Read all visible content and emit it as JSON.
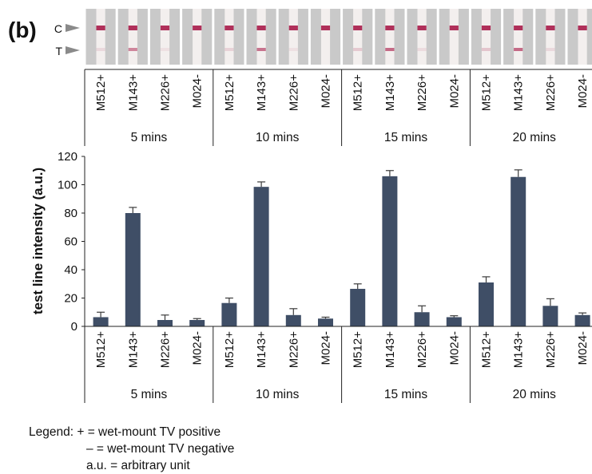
{
  "figure": {
    "panel_label": "(b)",
    "marker_c": "C",
    "marker_t": "T"
  },
  "strips": [
    {
      "group": "5 mins",
      "sample": "M512+",
      "control_line": 1.0,
      "test_line": 0.12
    },
    {
      "group": "5 mins",
      "sample": "M143+",
      "control_line": 1.0,
      "test_line": 0.55
    },
    {
      "group": "5 mins",
      "sample": "M226+",
      "control_line": 1.0,
      "test_line": 0.08
    },
    {
      "group": "5 mins",
      "sample": "M024-",
      "control_line": 1.0,
      "test_line": 0.0
    },
    {
      "group": "10 mins",
      "sample": "M512+",
      "control_line": 1.0,
      "test_line": 0.15
    },
    {
      "group": "10 mins",
      "sample": "M143+",
      "control_line": 1.0,
      "test_line": 0.65
    },
    {
      "group": "10 mins",
      "sample": "M226+",
      "control_line": 1.0,
      "test_line": 0.08
    },
    {
      "group": "10 mins",
      "sample": "M024-",
      "control_line": 1.0,
      "test_line": 0.0
    },
    {
      "group": "15 mins",
      "sample": "M512+",
      "control_line": 1.0,
      "test_line": 0.2
    },
    {
      "group": "15 mins",
      "sample": "M143+",
      "control_line": 1.0,
      "test_line": 0.7
    },
    {
      "group": "15 mins",
      "sample": "M226+",
      "control_line": 1.0,
      "test_line": 0.1
    },
    {
      "group": "15 mins",
      "sample": "M024-",
      "control_line": 1.0,
      "test_line": 0.0
    },
    {
      "group": "20 mins",
      "sample": "M512+",
      "control_line": 1.0,
      "test_line": 0.22
    },
    {
      "group": "20 mins",
      "sample": "M143+",
      "control_line": 1.0,
      "test_line": 0.7
    },
    {
      "group": "20 mins",
      "sample": "M226+",
      "control_line": 1.0,
      "test_line": 0.12
    },
    {
      "group": "20 mins",
      "sample": "M024-",
      "control_line": 1.0,
      "test_line": 0.0
    }
  ],
  "chart_data": {
    "type": "bar",
    "ylabel": "test line intensity (a.u.)",
    "ylim": [
      0,
      120
    ],
    "yticks": [
      0,
      20,
      40,
      60,
      80,
      100,
      120
    ],
    "groups": [
      "5 mins",
      "10 mins",
      "15 mins",
      "20 mins"
    ],
    "samples": [
      "M512+",
      "M143+",
      "M226+",
      "M024-"
    ],
    "bar_color": "#3f4e66",
    "values": [
      {
        "group": "5 mins",
        "values": [
          6.5,
          80,
          4.5,
          4.5
        ],
        "errors": [
          3.5,
          4,
          3.5,
          1
        ]
      },
      {
        "group": "10 mins",
        "values": [
          16.5,
          98.5,
          8,
          5.5
        ],
        "errors": [
          3.5,
          3.5,
          4.5,
          1
        ]
      },
      {
        "group": "15 mins",
        "values": [
          26.5,
          106,
          10,
          6.5
        ],
        "errors": [
          3.5,
          4,
          4.5,
          1
        ]
      },
      {
        "group": "20 mins",
        "values": [
          31,
          105.5,
          14.5,
          8
        ],
        "errors": [
          4,
          5,
          5,
          1.5
        ]
      }
    ]
  },
  "legend": {
    "line1": "Legend: + = wet-mount TV positive",
    "line2": "– = wet-mount TV negative",
    "line3": "a.u. = arbitrary unit"
  }
}
